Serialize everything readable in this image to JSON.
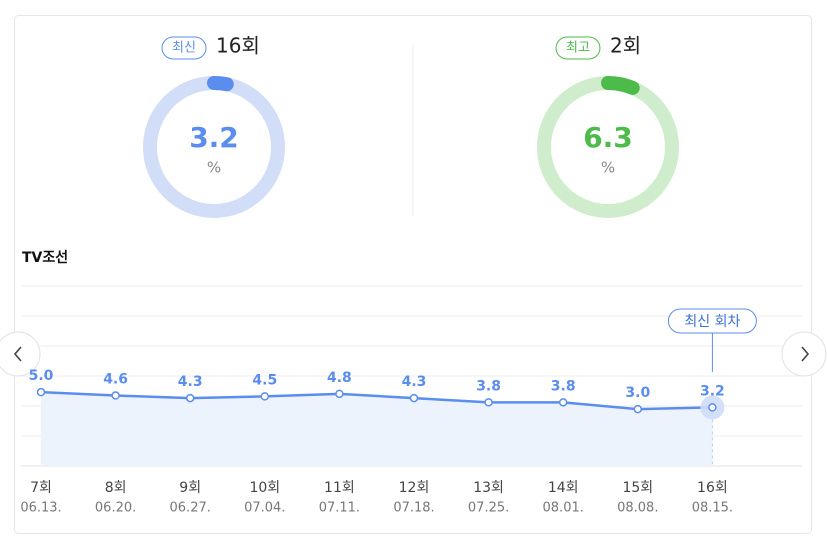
{
  "chart_data": [
    {
      "type": "gauge",
      "badge": "최신",
      "title": "16회",
      "value": 3.2,
      "unit": "%",
      "color": "#5b8def",
      "track": "#d2ddf8"
    },
    {
      "type": "gauge",
      "badge": "최고",
      "title": "2회",
      "value": 6.3,
      "unit": "%",
      "color": "#4dbb4a",
      "track": "#cfedcc"
    },
    {
      "type": "line",
      "title": "TV조선",
      "categories": [
        "7회",
        "8회",
        "9회",
        "10회",
        "11회",
        "12회",
        "13회",
        "14회",
        "15회",
        "16회"
      ],
      "dates": [
        "06.13.",
        "06.20.",
        "06.27.",
        "07.04.",
        "07.11.",
        "07.18.",
        "07.25.",
        "08.01.",
        "08.08.",
        "08.15."
      ],
      "values": [
        5.0,
        4.6,
        4.3,
        4.5,
        4.8,
        4.3,
        3.8,
        3.8,
        3.0,
        3.2
      ],
      "value_labels": [
        "5.0",
        "4.6",
        "4.3",
        "4.5",
        "4.8",
        "4.3",
        "3.8",
        "3.8",
        "3.0",
        "3.2"
      ],
      "annotation": "최신 회차",
      "color": "#5b8def",
      "ylim": [
        -3.7,
        17.5
      ]
    }
  ]
}
